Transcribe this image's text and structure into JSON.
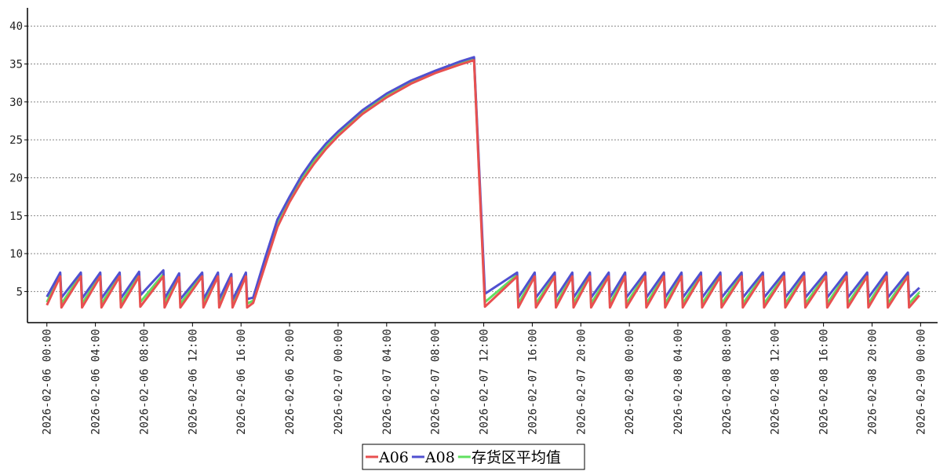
{
  "chart_data": {
    "type": "line",
    "x": [
      "2026-02-06 00:00",
      "2026-02-06 01:06",
      "2026-02-06 01:12",
      "2026-02-06 02:48",
      "2026-02-06 02:54",
      "2026-02-06 04:24",
      "2026-02-06 04:30",
      "2026-02-06 06:00",
      "2026-02-06 06:06",
      "2026-02-06 07:36",
      "2026-02-06 07:42",
      "2026-02-06 09:36",
      "2026-02-06 09:42",
      "2026-02-06 10:54",
      "2026-02-06 11:00",
      "2026-02-06 12:48",
      "2026-02-06 12:54",
      "2026-02-06 14:06",
      "2026-02-06 14:12",
      "2026-02-06 15:12",
      "2026-02-06 15:18",
      "2026-02-06 16:24",
      "2026-02-06 16:30",
      "2026-02-06 17:00",
      "2026-02-06 18:00",
      "2026-02-06 19:00",
      "2026-02-06 20:00",
      "2026-02-06 21:00",
      "2026-02-06 22:00",
      "2026-02-06 23:00",
      "2026-02-07 00:00",
      "2026-02-07 02:00",
      "2026-02-07 04:00",
      "2026-02-07 06:00",
      "2026-02-07 08:00",
      "2026-02-07 10:00",
      "2026-02-07 11:12",
      "2026-02-07 12:06",
      "2026-02-07 14:45",
      "2026-02-07 14:51",
      "2026-02-07 16:12",
      "2026-02-07 16:18",
      "2026-02-07 17:51",
      "2026-02-07 17:57",
      "2026-02-07 19:18",
      "2026-02-07 19:24",
      "2026-02-07 20:45",
      "2026-02-07 20:51",
      "2026-02-07 22:18",
      "2026-02-07 22:24",
      "2026-02-07 23:39",
      "2026-02-07 23:45",
      "2026-02-08 01:18",
      "2026-02-08 01:24",
      "2026-02-08 02:51",
      "2026-02-08 02:57",
      "2026-02-08 04:18",
      "2026-02-08 04:24",
      "2026-02-08 05:54",
      "2026-02-08 06:00",
      "2026-02-08 07:30",
      "2026-02-08 07:36",
      "2026-02-08 09:15",
      "2026-02-08 09:21",
      "2026-02-08 11:00",
      "2026-02-08 11:06",
      "2026-02-08 12:45",
      "2026-02-08 12:51",
      "2026-02-08 14:24",
      "2026-02-08 14:30",
      "2026-02-08 16:12",
      "2026-02-08 16:18",
      "2026-02-08 17:54",
      "2026-02-08 18:00",
      "2026-02-08 19:36",
      "2026-02-08 19:42",
      "2026-02-08 21:12",
      "2026-02-08 21:18",
      "2026-02-08 22:57",
      "2026-02-08 23:03",
      "2026-02-08 23:54"
    ],
    "series": [
      {
        "name": "A06",
        "color": "#e85050",
        "values": [
          3.2,
          7.0,
          2.9,
          7.0,
          2.9,
          7.0,
          2.9,
          7.0,
          2.9,
          7.0,
          3.0,
          7.0,
          2.9,
          6.9,
          2.9,
          7.0,
          2.9,
          7.0,
          2.9,
          6.8,
          2.9,
          7.0,
          2.9,
          3.5,
          8.5,
          13.5,
          16.8,
          19.5,
          21.8,
          23.8,
          25.5,
          28.4,
          30.6,
          32.4,
          33.8,
          34.9,
          35.5,
          3.0,
          7.0,
          2.9,
          7.0,
          2.9,
          7.0,
          2.9,
          7.0,
          2.9,
          7.0,
          2.9,
          7.0,
          2.9,
          7.0,
          2.9,
          7.0,
          2.9,
          7.0,
          2.9,
          7.0,
          2.9,
          7.0,
          2.9,
          7.0,
          2.9,
          7.0,
          2.9,
          7.0,
          2.9,
          7.0,
          2.9,
          7.0,
          2.9,
          7.0,
          2.9,
          7.0,
          2.9,
          7.0,
          2.9,
          7.0,
          2.9,
          7.0,
          2.9,
          4.5
        ]
      },
      {
        "name": "A08",
        "color": "#5050d0",
        "values": [
          4.3,
          7.5,
          4.2,
          7.5,
          4.1,
          7.5,
          4.1,
          7.5,
          4.1,
          7.6,
          4.5,
          7.8,
          4.1,
          7.4,
          4.0,
          7.5,
          4.0,
          7.5,
          4.0,
          7.3,
          3.9,
          7.5,
          4.0,
          4.2,
          9.5,
          14.5,
          17.5,
          20.3,
          22.6,
          24.5,
          26.1,
          28.9,
          31.1,
          32.8,
          34.1,
          35.3,
          35.9,
          4.7,
          7.5,
          4.2,
          7.5,
          4.2,
          7.5,
          4.2,
          7.5,
          4.2,
          7.5,
          4.2,
          7.5,
          4.2,
          7.5,
          4.2,
          7.5,
          4.2,
          7.5,
          4.2,
          7.5,
          4.2,
          7.5,
          4.2,
          7.5,
          4.2,
          7.5,
          4.2,
          7.5,
          4.2,
          7.5,
          4.2,
          7.5,
          4.2,
          7.5,
          4.2,
          7.5,
          4.2,
          7.5,
          4.2,
          7.5,
          4.2,
          7.5,
          4.2,
          5.5
        ]
      },
      {
        "name": "存货区平均值",
        "color": "#60e060",
        "values": [
          3.6,
          7.2,
          3.4,
          7.2,
          3.4,
          7.2,
          3.4,
          7.2,
          3.4,
          7.3,
          3.6,
          7.3,
          3.4,
          7.1,
          3.4,
          7.2,
          3.4,
          7.2,
          3.4,
          7.0,
          3.4,
          7.2,
          3.4,
          3.8,
          9.0,
          14.0,
          17.1,
          19.9,
          22.2,
          24.1,
          25.8,
          28.6,
          30.8,
          32.6,
          33.9,
          35.1,
          35.7,
          3.6,
          7.2,
          3.4,
          7.2,
          3.4,
          7.2,
          3.4,
          7.2,
          3.4,
          7.2,
          3.4,
          7.2,
          3.4,
          7.2,
          3.4,
          7.2,
          3.4,
          7.2,
          3.4,
          7.2,
          3.4,
          7.2,
          3.4,
          7.2,
          3.4,
          7.2,
          3.4,
          7.2,
          3.4,
          7.2,
          3.4,
          7.2,
          3.4,
          7.2,
          3.4,
          7.2,
          3.4,
          7.2,
          3.4,
          7.2,
          3.4,
          7.2,
          3.4,
          4.9
        ]
      }
    ],
    "xlim": [
      "2026-02-05 22:24",
      "2026-02-09 01:24"
    ],
    "xticks": [
      "2026-02-06 00:00",
      "2026-02-06 04:00",
      "2026-02-06 08:00",
      "2026-02-06 12:00",
      "2026-02-06 16:00",
      "2026-02-06 20:00",
      "2026-02-07 00:00",
      "2026-02-07 04:00",
      "2026-02-07 08:00",
      "2026-02-07 12:00",
      "2026-02-07 16:00",
      "2026-02-07 20:00",
      "2026-02-08 00:00",
      "2026-02-08 04:00",
      "2026-02-08 08:00",
      "2026-02-08 12:00",
      "2026-02-08 16:00",
      "2026-02-08 20:00",
      "2026-02-09 00:00"
    ],
    "ylim": [
      0.9,
      42.4
    ],
    "yticks": [
      5,
      10,
      15,
      20,
      25,
      30,
      35,
      40
    ],
    "grid": true,
    "legend": "bottom"
  }
}
